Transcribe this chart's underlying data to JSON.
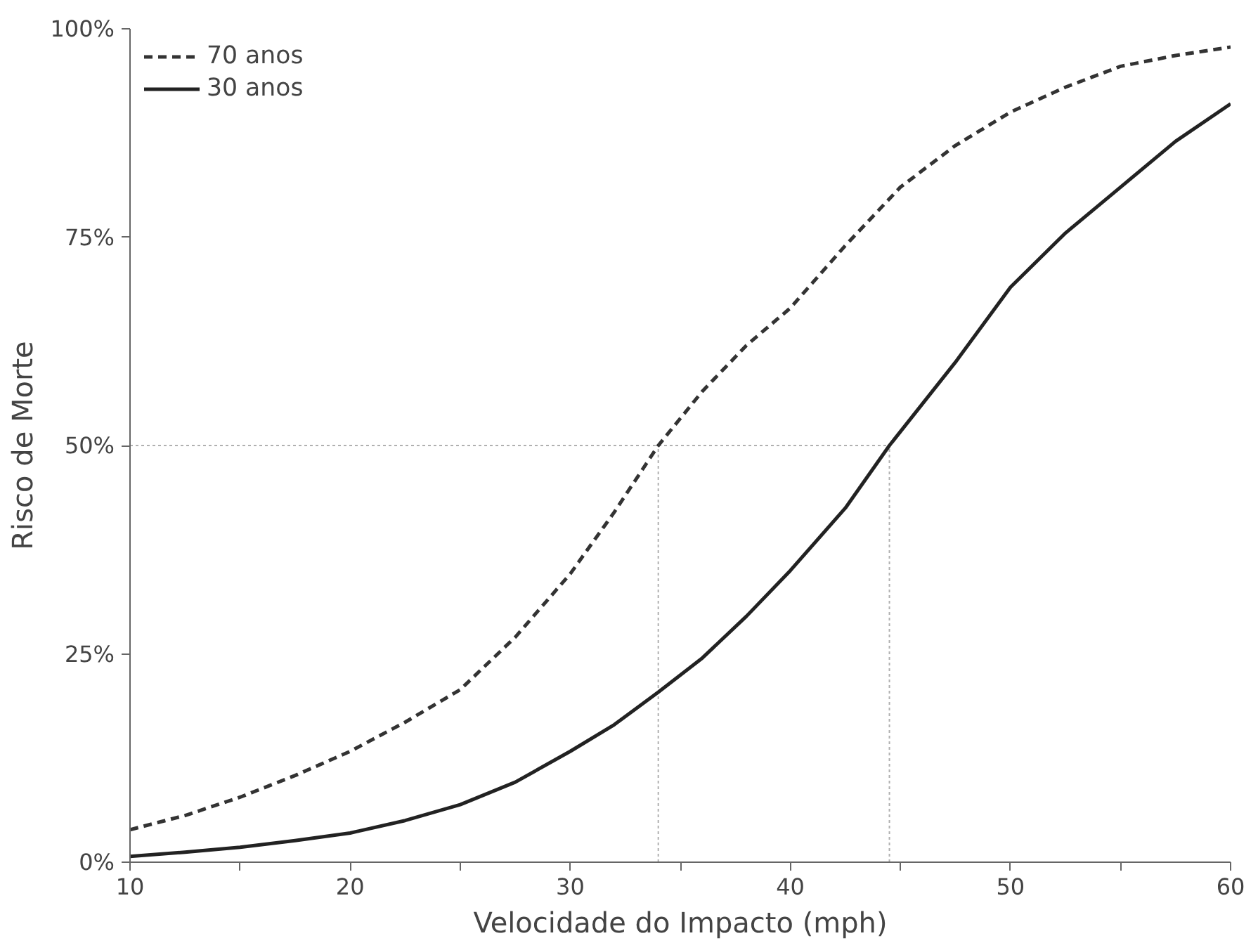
{
  "chart_data": {
    "type": "line",
    "xlabel": "Velocidade do Impacto (mph)",
    "ylabel": "Risco de Morte",
    "xlim": [
      10,
      60
    ],
    "xticks": [
      10,
      20,
      30,
      40,
      50,
      60
    ],
    "ylim": [
      0,
      100
    ],
    "yticks": [
      {
        "value": 0,
        "label": "0%"
      },
      {
        "value": 25,
        "label": "25%"
      },
      {
        "value": 50,
        "label": "50%"
      },
      {
        "value": 75,
        "label": "75%"
      },
      {
        "value": 100,
        "label": "100%"
      }
    ],
    "grid": false,
    "legend": "top left",
    "series": [
      {
        "name": "70 anos",
        "color": "#333333",
        "line_style": "dashed",
        "x": [
          10,
          12.5,
          15,
          17.5,
          20,
          22.5,
          25,
          27.5,
          30,
          32,
          34,
          36,
          38,
          40,
          42.5,
          45,
          47.5,
          50,
          52.5,
          55,
          57.5,
          60
        ],
        "values": [
          3.9,
          5.6,
          7.8,
          10.4,
          13.3,
          16.8,
          20.7,
          27,
          34.6,
          42,
          50,
          56.5,
          62,
          66.5,
          74,
          81,
          86,
          90,
          93,
          95.5,
          96.8,
          97.8
        ]
      },
      {
        "name": "30 anos",
        "color": "#222222",
        "line_style": "solid",
        "x": [
          10,
          12.5,
          15,
          17.5,
          20,
          22.5,
          25,
          27.5,
          30,
          32,
          34,
          36,
          38,
          40,
          42.5,
          44.5,
          47.5,
          50,
          52.5,
          55,
          57.5,
          60
        ],
        "values": [
          0.7,
          1.2,
          1.8,
          2.6,
          3.5,
          5,
          6.9,
          9.6,
          13.3,
          16.5,
          20.4,
          24.5,
          29.5,
          35,
          42.5,
          50,
          60,
          69,
          75.5,
          81,
          86.5,
          91
        ]
      }
    ],
    "ref_lines": [
      {
        "axis": "y",
        "value": 50,
        "color": "#b0b0b0",
        "line_style": "dotted"
      },
      {
        "axis": "x",
        "value": 34,
        "color": "#b0b0b0",
        "line_style": "dotted"
      },
      {
        "axis": "x",
        "value": 44.5,
        "color": "#b0b0b0",
        "line_style": "dotted"
      }
    ]
  }
}
